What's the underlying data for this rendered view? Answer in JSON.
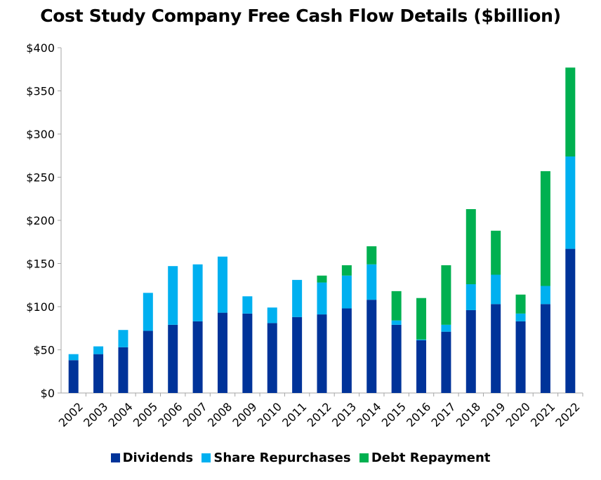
{
  "chart_data": {
    "type": "bar",
    "stacked": true,
    "title": "Cost Study Company Free Cash Flow Details ($billion)",
    "xlabel": "",
    "ylabel": "",
    "ylim": [
      0,
      400
    ],
    "yticks": [
      "$0",
      "$50",
      "$100",
      "$150",
      "$200",
      "$250",
      "$300",
      "$350",
      "$400"
    ],
    "ytick_values": [
      0,
      50,
      100,
      150,
      200,
      250,
      300,
      350,
      400
    ],
    "grid": false,
    "legend_position": "bottom",
    "categories": [
      "2002",
      "2003",
      "2004",
      "2005",
      "2006",
      "2007",
      "2008",
      "2009",
      "2010",
      "2011",
      "2012",
      "2013",
      "2014",
      "2015",
      "2016",
      "2017",
      "2018",
      "2019",
      "2020",
      "2021",
      "2022"
    ],
    "series": [
      {
        "name": "Dividends",
        "color": "#003399",
        "values": [
          38,
          45,
          53,
          72,
          79,
          83,
          93,
          92,
          81,
          88,
          91,
          98,
          108,
          79,
          61,
          71,
          96,
          103,
          83,
          103,
          167
        ]
      },
      {
        "name": "Share Repurchases",
        "color": "#00b0f0",
        "values": [
          7,
          9,
          20,
          44,
          68,
          66,
          65,
          20,
          18,
          43,
          37,
          38,
          41,
          5,
          1,
          8,
          30,
          34,
          9,
          21,
          107
        ]
      },
      {
        "name": "Debt Repayment",
        "color": "#00b050",
        "values": [
          0,
          0,
          0,
          0,
          0,
          0,
          0,
          0,
          0,
          0,
          8,
          12,
          21,
          34,
          48,
          69,
          87,
          51,
          22,
          133,
          103
        ]
      }
    ]
  }
}
